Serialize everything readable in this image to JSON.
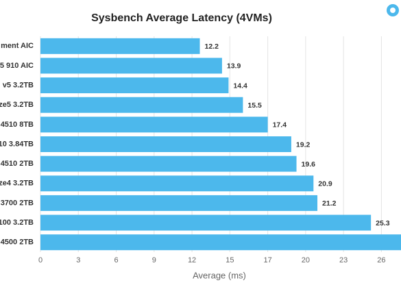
{
  "chart_data": {
    "type": "bar",
    "orientation": "horizontal",
    "title": "Sysbench Average Latency (4VMs)",
    "x_label": "Average (ms)",
    "categories": [
      "ment AIC",
      "5 910 AIC",
      "v5 3.2TB",
      "ze5 3.2TB",
      "4510 8TB",
      "10 3.84TB",
      "4510 2TB",
      "ze4 3.2TB",
      "3700 2TB",
      "100 3.2TB",
      "4500 2TB"
    ],
    "values": [
      12.2,
      13.9,
      14.4,
      15.5,
      17.4,
      19.2,
      19.6,
      20.9,
      21.2,
      25.3,
      28
    ],
    "color": "#4cb8ec",
    "xlim": [
      0,
      27.6
    ],
    "xticks": [
      0,
      {
        "value": 2.9,
        "label": "3"
      },
      {
        "value": 5.8,
        "label": "6"
      },
      {
        "value": 8.7,
        "label": "9"
      },
      {
        "value": 11.6,
        "label": "12"
      },
      {
        "value": 14.5,
        "label": "15"
      },
      {
        "value": 17.4,
        "label": "17"
      },
      {
        "value": 20.3,
        "label": "20"
      },
      {
        "value": 23.2,
        "label": "23"
      },
      {
        "value": 26.1,
        "label": "26"
      }
    ],
    "grid": true
  }
}
